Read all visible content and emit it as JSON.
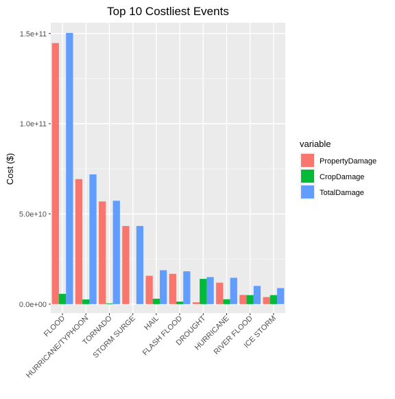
{
  "chart_data": {
    "type": "bar",
    "title": "Top 10 Costliest Events",
    "xlabel": "",
    "ylabel": "Cost ($)",
    "ylim": [
      -5000000000,
      156000000000
    ],
    "yticks": [
      0,
      50000000000,
      100000000000,
      150000000000
    ],
    "ytick_labels": [
      "0.0e+00",
      "5.0e+10",
      "1.0e+11",
      "1.5e+11"
    ],
    "categories": [
      "FLOOD",
      "HURRICANE/TYPHOON",
      "TORNADO",
      "STORM SURGE",
      "HAIL",
      "FLASH FLOOD",
      "DROUGHT",
      "HURRICANE",
      "RIVER FLOOD",
      "ICE STORM"
    ],
    "series": [
      {
        "name": "PropertyDamage",
        "color": "#F8766D",
        "values": [
          144700000000,
          69300000000,
          56900000000,
          43300000000,
          15700000000,
          16800000000,
          1000000000,
          11900000000,
          5100000000,
          3900000000
        ]
      },
      {
        "name": "CropDamage",
        "color": "#00BA38",
        "values": [
          5700000000,
          2600000000,
          400000000,
          0,
          3000000000,
          1400000000,
          14000000000,
          2700000000,
          5000000000,
          5000000000
        ]
      },
      {
        "name": "TotalDamage",
        "color": "#619CFF",
        "values": [
          150300000000,
          71900000000,
          57300000000,
          43300000000,
          18800000000,
          18200000000,
          15000000000,
          14600000000,
          10100000000,
          8900000000
        ]
      }
    ],
    "legend": {
      "title": "variable",
      "position": "right"
    },
    "grid": true
  }
}
